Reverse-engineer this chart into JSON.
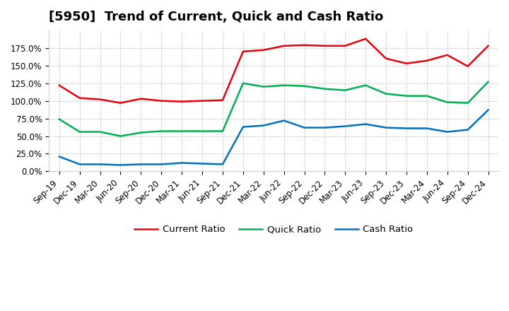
{
  "title": "[5950]  Trend of Current, Quick and Cash Ratio",
  "x_labels": [
    "Sep-19",
    "Dec-19",
    "Mar-20",
    "Jun-20",
    "Sep-20",
    "Dec-20",
    "Mar-21",
    "Jun-21",
    "Sep-21",
    "Dec-21",
    "Mar-22",
    "Jun-22",
    "Sep-22",
    "Dec-22",
    "Mar-23",
    "Jun-23",
    "Sep-23",
    "Dec-23",
    "Mar-24",
    "Jun-24",
    "Sep-24",
    "Dec-24"
  ],
  "current_ratio": [
    122,
    104,
    102,
    97,
    103,
    100,
    99,
    100,
    101,
    170,
    172,
    178,
    179,
    178,
    178,
    188,
    160,
    153,
    157,
    165,
    149,
    178
  ],
  "quick_ratio": [
    74,
    56,
    56,
    50,
    55,
    57,
    57,
    57,
    57,
    125,
    120,
    122,
    121,
    117,
    115,
    122,
    110,
    107,
    107,
    98,
    97,
    127
  ],
  "cash_ratio": [
    21,
    10,
    10,
    9,
    10,
    10,
    12,
    11,
    10,
    63,
    65,
    72,
    62,
    62,
    64,
    67,
    62,
    61,
    61,
    56,
    59,
    87
  ],
  "current_color": "#e8000d",
  "quick_color": "#00b050",
  "cash_color": "#0070c0",
  "background_color": "#ffffff",
  "plot_bg_color": "#ffffff",
  "grid_color": "#aaaaaa",
  "ylim": [
    0,
    200
  ],
  "yticks": [
    0,
    25,
    50,
    75,
    100,
    125,
    150,
    175
  ],
  "legend_labels": [
    "Current Ratio",
    "Quick Ratio",
    "Cash Ratio"
  ],
  "line_width": 1.8,
  "title_fontsize": 13,
  "tick_fontsize": 8.5
}
